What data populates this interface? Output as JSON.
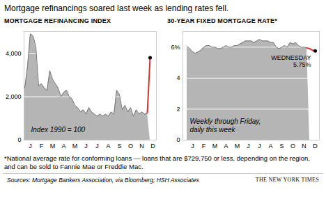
{
  "title": "Mortgage refinancings soared last week as lending rates fell.",
  "footnote": "*National average rate for conforming loans — loans that are $729,750 or less, depending on the region, and can be sold to Fannie Mae or Freddie Mac.",
  "source": "Sources: Mortgage Bankers Association, via Bloomberg; HSH Associates",
  "credit": "THE NEW YORK TIMES",
  "chart_data": [
    {
      "type": "area",
      "title": "MORTGAGE REFINANCING INDEX",
      "categories": [
        null,
        null,
        "J",
        null,
        null,
        null,
        "F",
        null,
        null,
        null,
        "M",
        null,
        null,
        null,
        "A",
        null,
        null,
        null,
        "M",
        null,
        null,
        null,
        "J",
        null,
        null,
        null,
        "J",
        null,
        null,
        null,
        "A",
        null,
        null,
        null,
        "S",
        null,
        null,
        null,
        "O",
        null,
        null,
        null,
        "N",
        null,
        null,
        null,
        "D",
        null
      ],
      "series": [
        {
          "type": "area",
          "color": "#b5b5b5",
          "values": [
            2400,
            3400,
            4900,
            4800,
            4300,
            2500,
            2600,
            2400,
            2300,
            3200,
            2800,
            2600,
            2400,
            2000,
            2200,
            2300,
            2000,
            1900,
            1600,
            1500,
            1300,
            1400,
            1200,
            1500,
            1300,
            1200,
            1100,
            1200,
            1100,
            1200,
            1100,
            1300,
            1200,
            2300,
            2100,
            1400,
            1600,
            1300,
            1500,
            1100,
            1400,
            1200,
            1300,
            1200,
            1250,
            null,
            null,
            null
          ]
        },
        {
          "type": "line",
          "color": "#d6322a",
          "marker": "dot",
          "values": [
            null,
            null,
            null,
            null,
            null,
            null,
            null,
            null,
            null,
            null,
            null,
            null,
            null,
            null,
            null,
            null,
            null,
            null,
            null,
            null,
            null,
            null,
            null,
            null,
            null,
            null,
            null,
            null,
            null,
            null,
            null,
            null,
            null,
            null,
            null,
            null,
            null,
            null,
            null,
            null,
            null,
            null,
            null,
            null,
            1250,
            3800,
            null,
            null
          ]
        }
      ],
      "ylim": [
        0,
        5000
      ],
      "yticks": [
        0,
        {
          "value": 2000,
          "label": "2,000"
        },
        {
          "value": 4000,
          "label": "4,000"
        }
      ],
      "grid": true,
      "annotations": [
        {
          "lines": [
            "Index 1990 = 100"
          ]
        }
      ]
    },
    {
      "type": "area",
      "title": "30-YEAR FIXED MORTGAGE RATE*",
      "categories": [
        null,
        null,
        "J",
        null,
        null,
        null,
        "F",
        null,
        null,
        null,
        "M",
        null,
        null,
        null,
        "A",
        null,
        null,
        null,
        "M",
        null,
        null,
        null,
        "J",
        null,
        null,
        null,
        "J",
        null,
        null,
        null,
        "A",
        null,
        null,
        null,
        "S",
        null,
        null,
        null,
        "O",
        null,
        null,
        null,
        "N",
        null,
        null,
        null,
        "D"
      ],
      "series": [
        {
          "type": "area",
          "color": "#b5b5b5",
          "values": [
            6.05,
            5.9,
            5.7,
            5.6,
            5.7,
            5.8,
            6.0,
            6.1,
            6.1,
            6.0,
            6.0,
            5.9,
            5.9,
            6.0,
            6.1,
            6.0,
            6.0,
            6.1,
            6.1,
            6.2,
            6.3,
            6.4,
            6.4,
            6.4,
            6.3,
            6.4,
            6.5,
            6.4,
            6.4,
            6.4,
            6.3,
            6.3,
            6.0,
            5.9,
            6.0,
            6.1,
            6.0,
            6.3,
            6.2,
            6.3,
            6.1,
            6.0,
            6.0,
            5.95,
            null,
            null,
            null
          ]
        },
        {
          "type": "line",
          "color": "#d6322a",
          "marker": "dot",
          "values": [
            null,
            null,
            null,
            null,
            null,
            null,
            null,
            null,
            null,
            null,
            null,
            null,
            null,
            null,
            null,
            null,
            null,
            null,
            null,
            null,
            null,
            null,
            null,
            null,
            null,
            null,
            null,
            null,
            null,
            null,
            null,
            null,
            null,
            null,
            null,
            null,
            null,
            null,
            null,
            null,
            null,
            null,
            null,
            5.95,
            5.9,
            5.8,
            5.75
          ]
        }
      ],
      "ylim": [
        0,
        7
      ],
      "yticks": [
        0,
        2,
        4,
        {
          "value": 6,
          "label": "6%"
        }
      ],
      "grid": true,
      "end_label": [
        "WEDNESDAY",
        "5.75%"
      ],
      "annotations": [
        {
          "lines": [
            "Weekly through Friday,",
            "daily this week"
          ]
        }
      ]
    }
  ]
}
